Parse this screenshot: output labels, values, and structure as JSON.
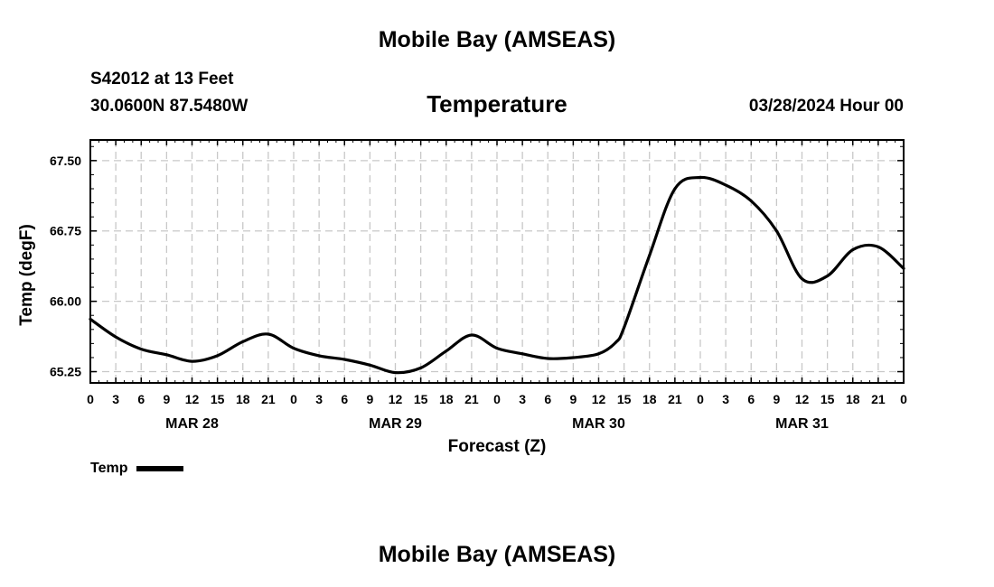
{
  "header": {
    "title": "Mobile Bay (AMSEAS)",
    "station": "S42012 at 13 Feet",
    "coords": "30.0600N  87.5480W",
    "variable": "Temperature",
    "run_time": "03/28/2024 Hour 00"
  },
  "footer": {
    "title": "Mobile Bay (AMSEAS)"
  },
  "legend": {
    "label": "Temp"
  },
  "chart_data": {
    "type": "line",
    "title": "Temperature",
    "xlabel": "Forecast (Z)",
    "ylabel": "Temp (degF)",
    "ylim": [
      65.13,
      67.72
    ],
    "xlim": [
      0,
      96
    ],
    "x_unit": "forecast hour",
    "grid": true,
    "y_ticks": [
      "65.25",
      "66.00",
      "66.75",
      "67.50"
    ],
    "x_tick_labels": [
      "0",
      "3",
      "6",
      "9",
      "12",
      "15",
      "18",
      "21",
      "0",
      "3",
      "6",
      "9",
      "12",
      "15",
      "18",
      "21",
      "0",
      "3",
      "6",
      "9",
      "12",
      "15",
      "18",
      "21",
      "0",
      "3",
      "6",
      "9",
      "12",
      "15",
      "18",
      "21",
      "0"
    ],
    "date_labels": [
      {
        "label": "MAR 28",
        "hour": 12
      },
      {
        "label": "MAR 29",
        "hour": 36
      },
      {
        "label": "MAR 30",
        "hour": 60
      },
      {
        "label": "MAR 31",
        "hour": 84
      }
    ],
    "series": [
      {
        "name": "Temp",
        "color": "#000000",
        "x": [
          0,
          3,
          6,
          9,
          12,
          15,
          18,
          21,
          24,
          27,
          30,
          33,
          36,
          39,
          42,
          45,
          48,
          51,
          54,
          57,
          60,
          62,
          63,
          66,
          69,
          72,
          75,
          78,
          81,
          84,
          87,
          90,
          93,
          96
        ],
        "values": [
          65.81,
          65.62,
          65.49,
          65.43,
          65.36,
          65.42,
          65.57,
          65.65,
          65.5,
          65.42,
          65.38,
          65.32,
          65.24,
          65.29,
          65.47,
          65.64,
          65.5,
          65.44,
          65.39,
          65.4,
          65.44,
          65.56,
          65.72,
          66.49,
          67.2,
          67.32,
          67.24,
          67.07,
          66.75,
          66.24,
          66.27,
          66.55,
          66.58,
          66.35
        ]
      }
    ]
  }
}
